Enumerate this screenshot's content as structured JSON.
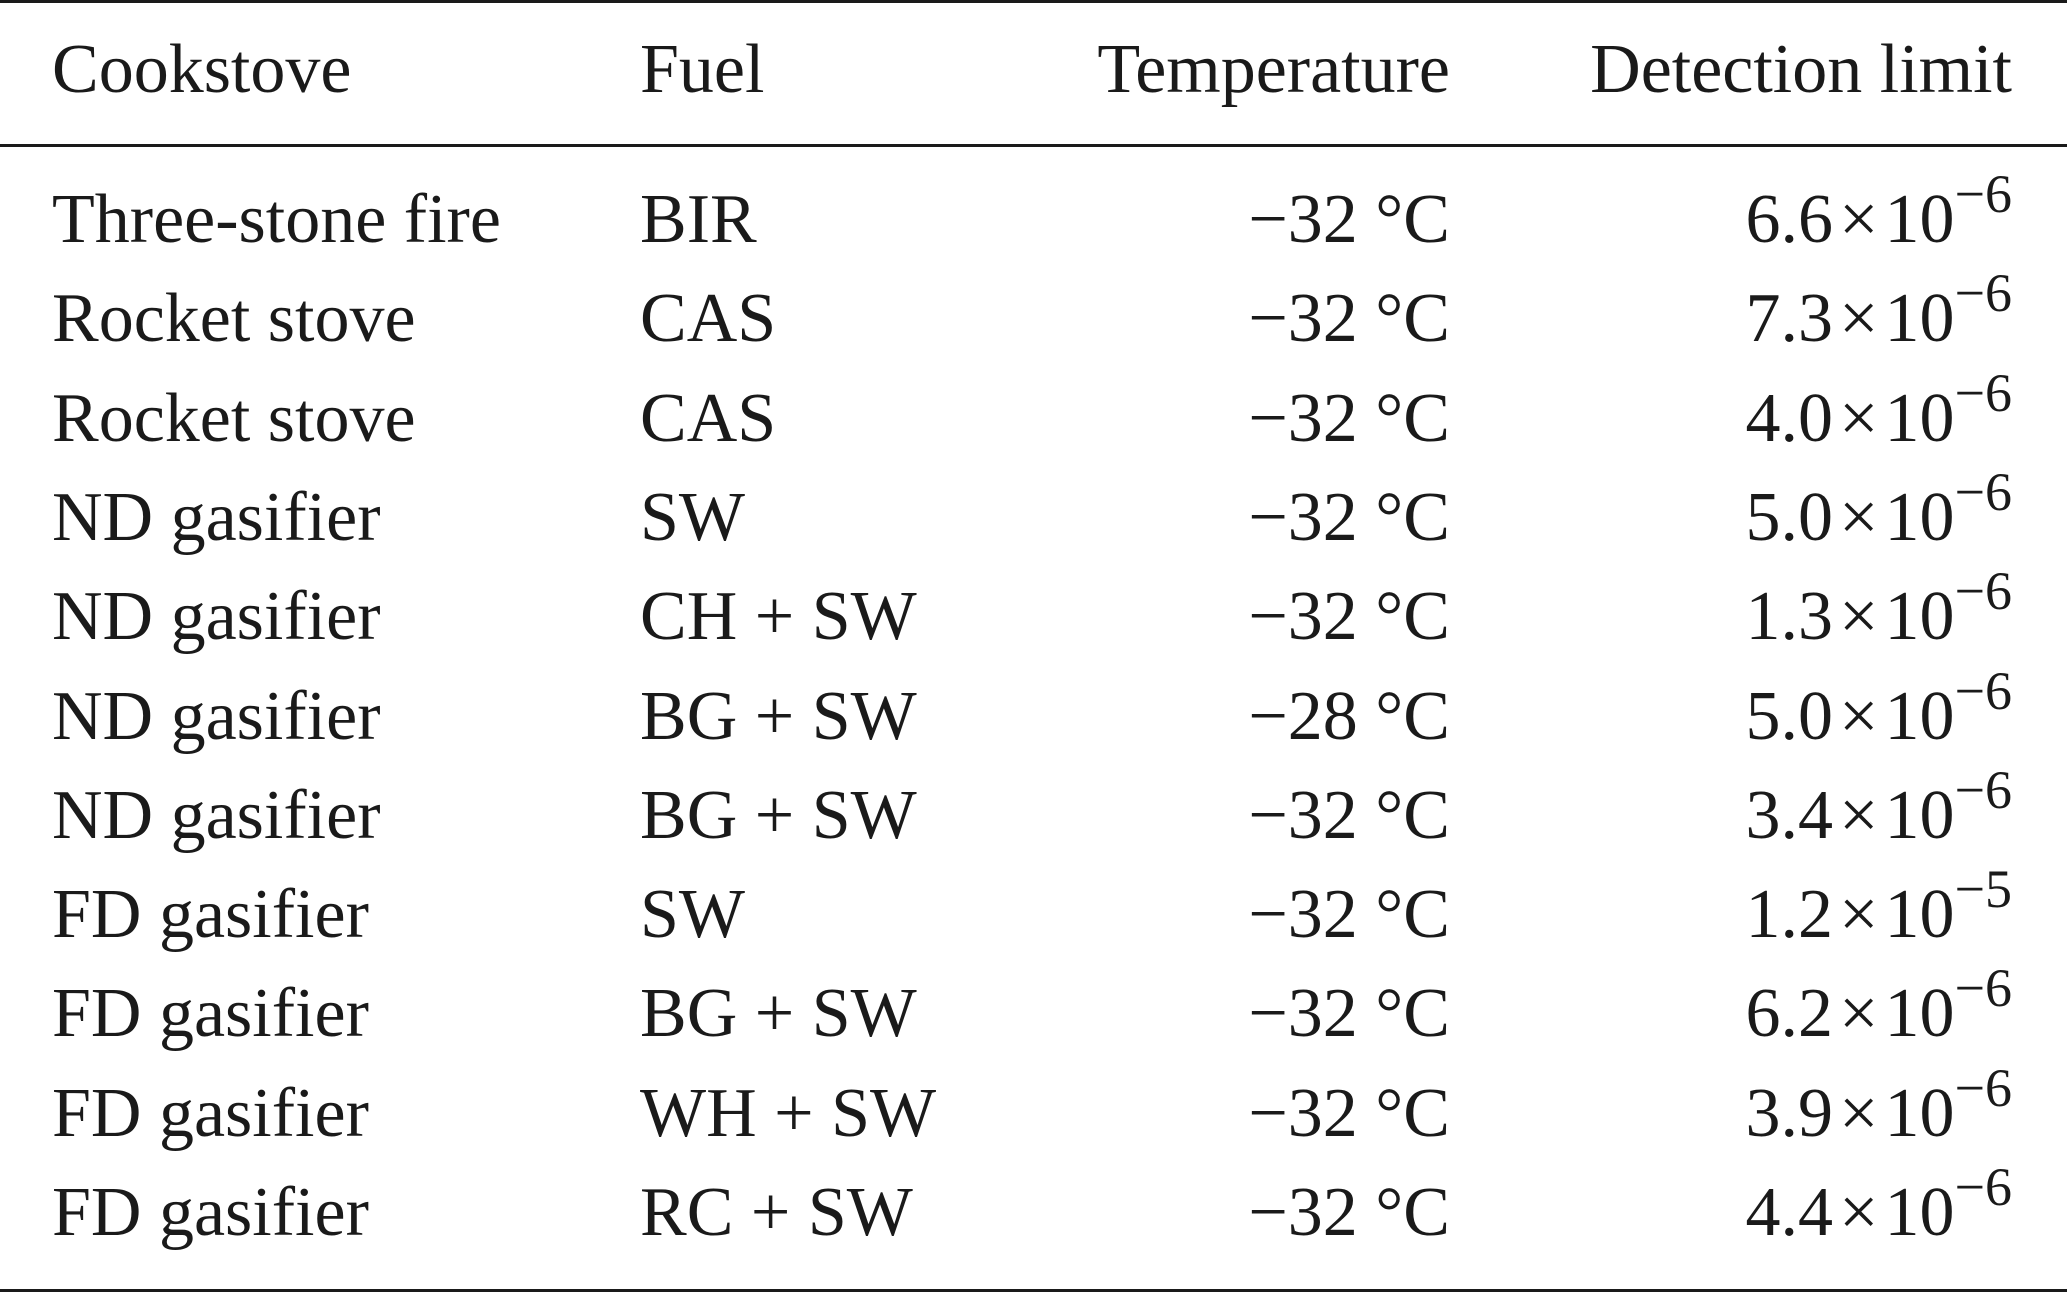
{
  "table": {
    "headers": {
      "cookstove": "Cookstove",
      "fuel": "Fuel",
      "temperature": "Temperature",
      "detection_limit": "Detection limit"
    },
    "rows": [
      {
        "cookstove": "Three-stone fire",
        "fuel": "BIR",
        "temperature": "−32 °C",
        "mantissa": "6.6",
        "base": "10",
        "exponent": "−6"
      },
      {
        "cookstove": "Rocket stove",
        "fuel": "CAS",
        "temperature": "−32 °C",
        "mantissa": "7.3",
        "base": "10",
        "exponent": "−6"
      },
      {
        "cookstove": "Rocket stove",
        "fuel": "CAS",
        "temperature": "−32 °C",
        "mantissa": "4.0",
        "base": "10",
        "exponent": "−6"
      },
      {
        "cookstove": "ND gasifier",
        "fuel": "SW",
        "temperature": "−32 °C",
        "mantissa": "5.0",
        "base": "10",
        "exponent": "−6"
      },
      {
        "cookstove": "ND gasifier",
        "fuel": "CH + SW",
        "temperature": "−32 °C",
        "mantissa": "1.3",
        "base": "10",
        "exponent": "−6"
      },
      {
        "cookstove": "ND gasifier",
        "fuel": "BG + SW",
        "temperature": "−28 °C",
        "mantissa": "5.0",
        "base": "10",
        "exponent": "−6"
      },
      {
        "cookstove": "ND gasifier",
        "fuel": "BG + SW",
        "temperature": "−32 °C",
        "mantissa": "3.4",
        "base": "10",
        "exponent": "−6"
      },
      {
        "cookstove": "FD gasifier",
        "fuel": "SW",
        "temperature": "−32 °C",
        "mantissa": "1.2",
        "base": "10",
        "exponent": "−5"
      },
      {
        "cookstove": "FD gasifier",
        "fuel": "BG + SW",
        "temperature": "−32 °C",
        "mantissa": "6.2",
        "base": "10",
        "exponent": "−6"
      },
      {
        "cookstove": "FD gasifier",
        "fuel": "WH + SW",
        "temperature": "−32 °C",
        "mantissa": "3.9",
        "base": "10",
        "exponent": "−6"
      },
      {
        "cookstove": "FD gasifier",
        "fuel": "RC + SW",
        "temperature": "−32 °C",
        "mantissa": "4.4",
        "base": "10",
        "exponent": "−6"
      }
    ]
  }
}
